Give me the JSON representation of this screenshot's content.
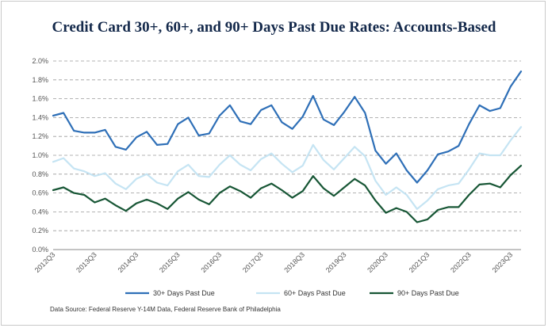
{
  "chart_data": {
    "type": "line",
    "title": "Credit Card 30+, 60+, and 90+ Days Past Due Rates: Accounts-Based",
    "source": "Data Source: Federal Reserve Y-14M Data, Federal Reserve Bank of Philadelphia",
    "xlabel": "",
    "ylabel": "",
    "ylim": [
      0,
      2.0
    ],
    "yticks": [
      "0.0%",
      "0.2%",
      "0.4%",
      "0.6%",
      "0.8%",
      "1.0%",
      "1.2%",
      "1.4%",
      "1.6%",
      "1.8%",
      "2.0%"
    ],
    "xtick_labels": [
      "2012Q3",
      "2013Q3",
      "2014Q3",
      "2015Q3",
      "2016Q3",
      "2017Q3",
      "2018Q3",
      "2019Q3",
      "2020Q3",
      "2021Q3",
      "2022Q3",
      "2023Q3"
    ],
    "grid": true,
    "legend_position": "bottom",
    "categories": [
      "2012Q3",
      "2012Q4",
      "2013Q1",
      "2013Q2",
      "2013Q3",
      "2013Q4",
      "2014Q1",
      "2014Q2",
      "2014Q3",
      "2014Q4",
      "2015Q1",
      "2015Q2",
      "2015Q3",
      "2015Q4",
      "2016Q1",
      "2016Q2",
      "2016Q3",
      "2016Q4",
      "2017Q1",
      "2017Q2",
      "2017Q3",
      "2017Q4",
      "2018Q1",
      "2018Q2",
      "2018Q3",
      "2018Q4",
      "2019Q1",
      "2019Q2",
      "2019Q3",
      "2019Q4",
      "2020Q1",
      "2020Q2",
      "2020Q3",
      "2020Q4",
      "2021Q1",
      "2021Q2",
      "2021Q3",
      "2021Q4",
      "2022Q1",
      "2022Q2",
      "2022Q3",
      "2022Q4",
      "2023Q1",
      "2023Q2",
      "2023Q3",
      "2023Q4"
    ],
    "series": [
      {
        "name": "30+ Days Past Due",
        "color": "#2e6fb7",
        "values": [
          1.42,
          1.45,
          1.26,
          1.24,
          1.24,
          1.27,
          1.09,
          1.06,
          1.19,
          1.25,
          1.11,
          1.12,
          1.33,
          1.4,
          1.21,
          1.23,
          1.42,
          1.53,
          1.36,
          1.33,
          1.48,
          1.53,
          1.35,
          1.28,
          1.41,
          1.63,
          1.38,
          1.32,
          1.46,
          1.62,
          1.45,
          1.05,
          0.91,
          1.02,
          0.84,
          0.71,
          0.84,
          1.01,
          1.04,
          1.1,
          1.33,
          1.53,
          1.47,
          1.5,
          1.73,
          1.89
        ]
      },
      {
        "name": "60+ Days Past Due",
        "color": "#c5e4f3",
        "values": [
          0.93,
          0.97,
          0.86,
          0.83,
          0.78,
          0.81,
          0.7,
          0.64,
          0.75,
          0.8,
          0.71,
          0.68,
          0.83,
          0.9,
          0.78,
          0.77,
          0.9,
          1.0,
          0.9,
          0.84,
          0.96,
          1.02,
          0.91,
          0.82,
          0.89,
          1.11,
          0.95,
          0.85,
          0.97,
          1.09,
          0.99,
          0.73,
          0.58,
          0.66,
          0.58,
          0.43,
          0.52,
          0.64,
          0.68,
          0.7,
          0.85,
          1.02,
          1.0,
          1.0,
          1.16,
          1.3
        ]
      },
      {
        "name": "90+ Days Past Due",
        "color": "#175635",
        "values": [
          0.63,
          0.66,
          0.6,
          0.58,
          0.5,
          0.54,
          0.47,
          0.41,
          0.49,
          0.53,
          0.49,
          0.43,
          0.54,
          0.61,
          0.53,
          0.48,
          0.6,
          0.67,
          0.62,
          0.55,
          0.65,
          0.7,
          0.63,
          0.55,
          0.62,
          0.78,
          0.65,
          0.57,
          0.66,
          0.75,
          0.68,
          0.52,
          0.39,
          0.44,
          0.4,
          0.29,
          0.32,
          0.42,
          0.45,
          0.45,
          0.58,
          0.69,
          0.7,
          0.66,
          0.79,
          0.89
        ]
      }
    ]
  }
}
